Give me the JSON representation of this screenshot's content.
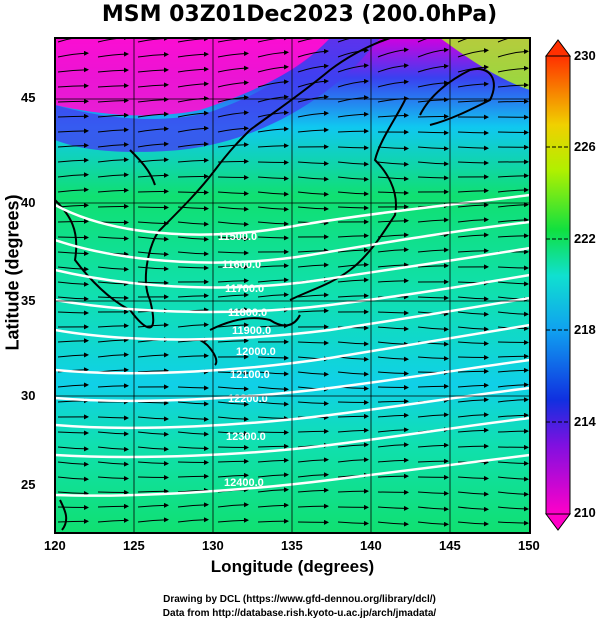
{
  "title": "MSM 03Z01Dec2023 (200.0hPa)",
  "x_axis": {
    "label": "Longitude (degrees)",
    "ticks": [
      "120",
      "125",
      "130",
      "135",
      "140",
      "145",
      "150"
    ]
  },
  "y_axis": {
    "label": "Latitude  (degrees)",
    "ticks": [
      "25",
      "30",
      "35",
      "40",
      "45"
    ]
  },
  "colorbar": {
    "ticks": [
      "230",
      "226",
      "222",
      "218",
      "214",
      "210"
    ]
  },
  "contour_labels": [
    "11500.0",
    "11600.0",
    "11700.0",
    "11800.0",
    "11900.0",
    "12000.0",
    "12100.0",
    "12200.0",
    "12300.0",
    "12400.0"
  ],
  "credits": {
    "line1": "Drawing by DCL (https://www.gfd-dennou.org/library/dcl/)",
    "line2": "Data from http://database.rish.kyoto-u.ac.jp/arch/jmadata/"
  },
  "colors": {
    "magenta": "#ff00c8",
    "blue": "#1030e0",
    "cyan": "#00d8e0",
    "green": "#10e040",
    "yellow": "#e8f000",
    "red": "#ff3000",
    "contour": "#ffffff",
    "coast": "#000000"
  }
}
